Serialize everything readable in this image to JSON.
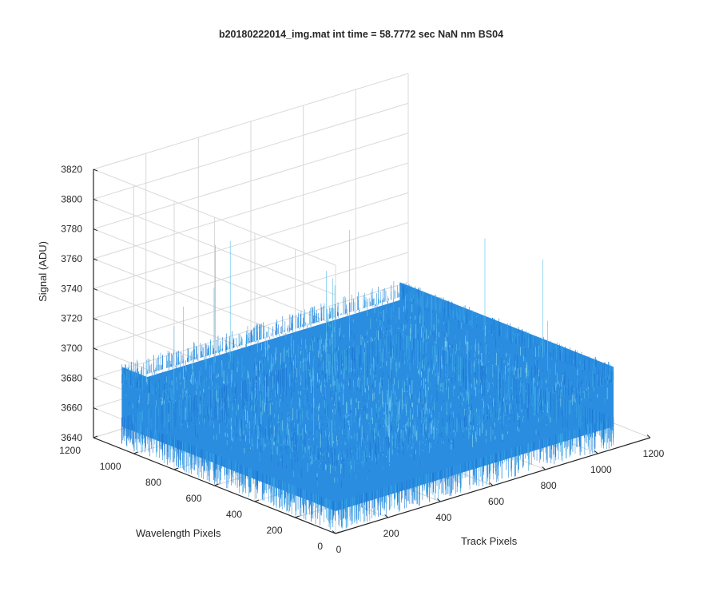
{
  "figure": {
    "background": "#ffffff",
    "axis_color": "#262626",
    "grid_color": "#d9d9d9"
  },
  "chart_data": {
    "type": "surface",
    "title": "b20180222014_img.mat int time = 58.7772 sec  NaN nm BS04",
    "xlabel": "Track Pixels",
    "ylabel": "Wavelength Pixels",
    "zlabel": "Signal (ADU)",
    "xlim": [
      0,
      1200
    ],
    "ylim": [
      0,
      1200
    ],
    "zlim": [
      3640,
      3820
    ],
    "x_ticks": [
      0,
      200,
      400,
      600,
      800,
      1000,
      1200
    ],
    "x_tick_labels": [
      "0",
      "200",
      "400",
      "600",
      "800",
      "1000",
      "1200"
    ],
    "y_ticks": [
      0,
      200,
      400,
      600,
      800,
      1000,
      1200
    ],
    "y_tick_labels": [
      "0",
      "200",
      "400",
      "600",
      "800",
      "1000",
      "1200"
    ],
    "z_ticks": [
      3640,
      3660,
      3680,
      3700,
      3720,
      3740,
      3760,
      3780,
      3800,
      3820
    ],
    "z_tick_labels": [
      "3640",
      "3660",
      "3680",
      "3700",
      "3720",
      "3740",
      "3760",
      "3780",
      "3800",
      "3820"
    ],
    "grid": true,
    "surface": {
      "x_extent": [
        0,
        1060
      ],
      "y_extent": [
        0,
        1060
      ],
      "mean_signal": 3675,
      "noise_range": [
        3655,
        3695
      ],
      "max_spike": 3775,
      "colors": [
        "#1f77d4",
        "#2a8de0",
        "#3aa6e6",
        "#56bde8",
        "#7fd0e8"
      ]
    }
  }
}
